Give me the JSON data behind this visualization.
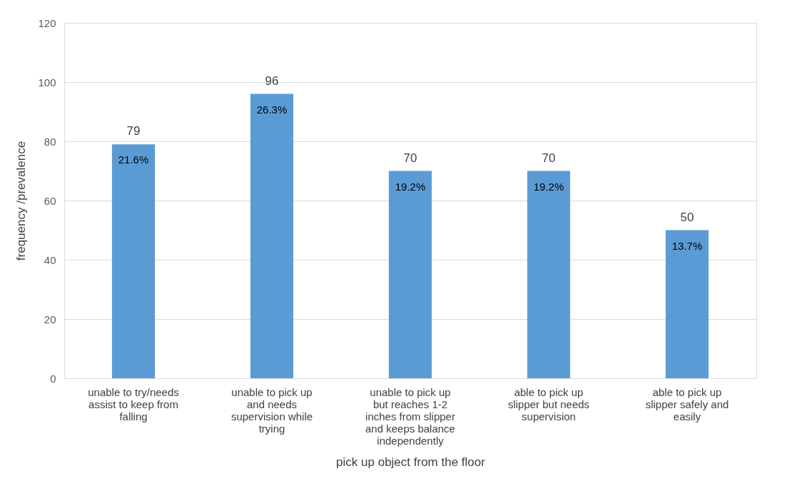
{
  "chart_data": {
    "type": "bar",
    "xlabel": "pick up object from the floor",
    "ylabel": "frequency /prevalence",
    "categories": [
      "unable to try/needs assist to keep from falling",
      "unable to pick up and needs supervision while trying",
      "unable to pick up but reaches 1-2 inches from slipper and keeps balance independently",
      "able to pick up slipper but needs supervision",
      "able to pick up slipper safely and easily"
    ],
    "values": [
      79,
      96,
      70,
      70,
      50
    ],
    "annotations": [
      {
        "text": "21.6%",
        "x": "unable to try/needs assist to keep from falling",
        "y": 79
      },
      {
        "text": "26.3%",
        "x": "unable to pick up and needs supervision while trying",
        "y": 96
      },
      {
        "text": "19.2%",
        "x": "unable to pick up but reaches 1-2 inches from slipper and keeps balance independently",
        "y": 70
      },
      {
        "text": "19.2%",
        "x": "able to pick up slipper but needs supervision",
        "y": 70
      },
      {
        "text": "13.7%",
        "x": "able to pick up slipper safely and easily",
        "y": 50
      }
    ],
    "data_labels": true,
    "color": "#5b9bd5",
    "ylim": [
      0,
      120
    ],
    "yticks": [
      0,
      20,
      40,
      60,
      80,
      100,
      120
    ],
    "grid": "y"
  }
}
